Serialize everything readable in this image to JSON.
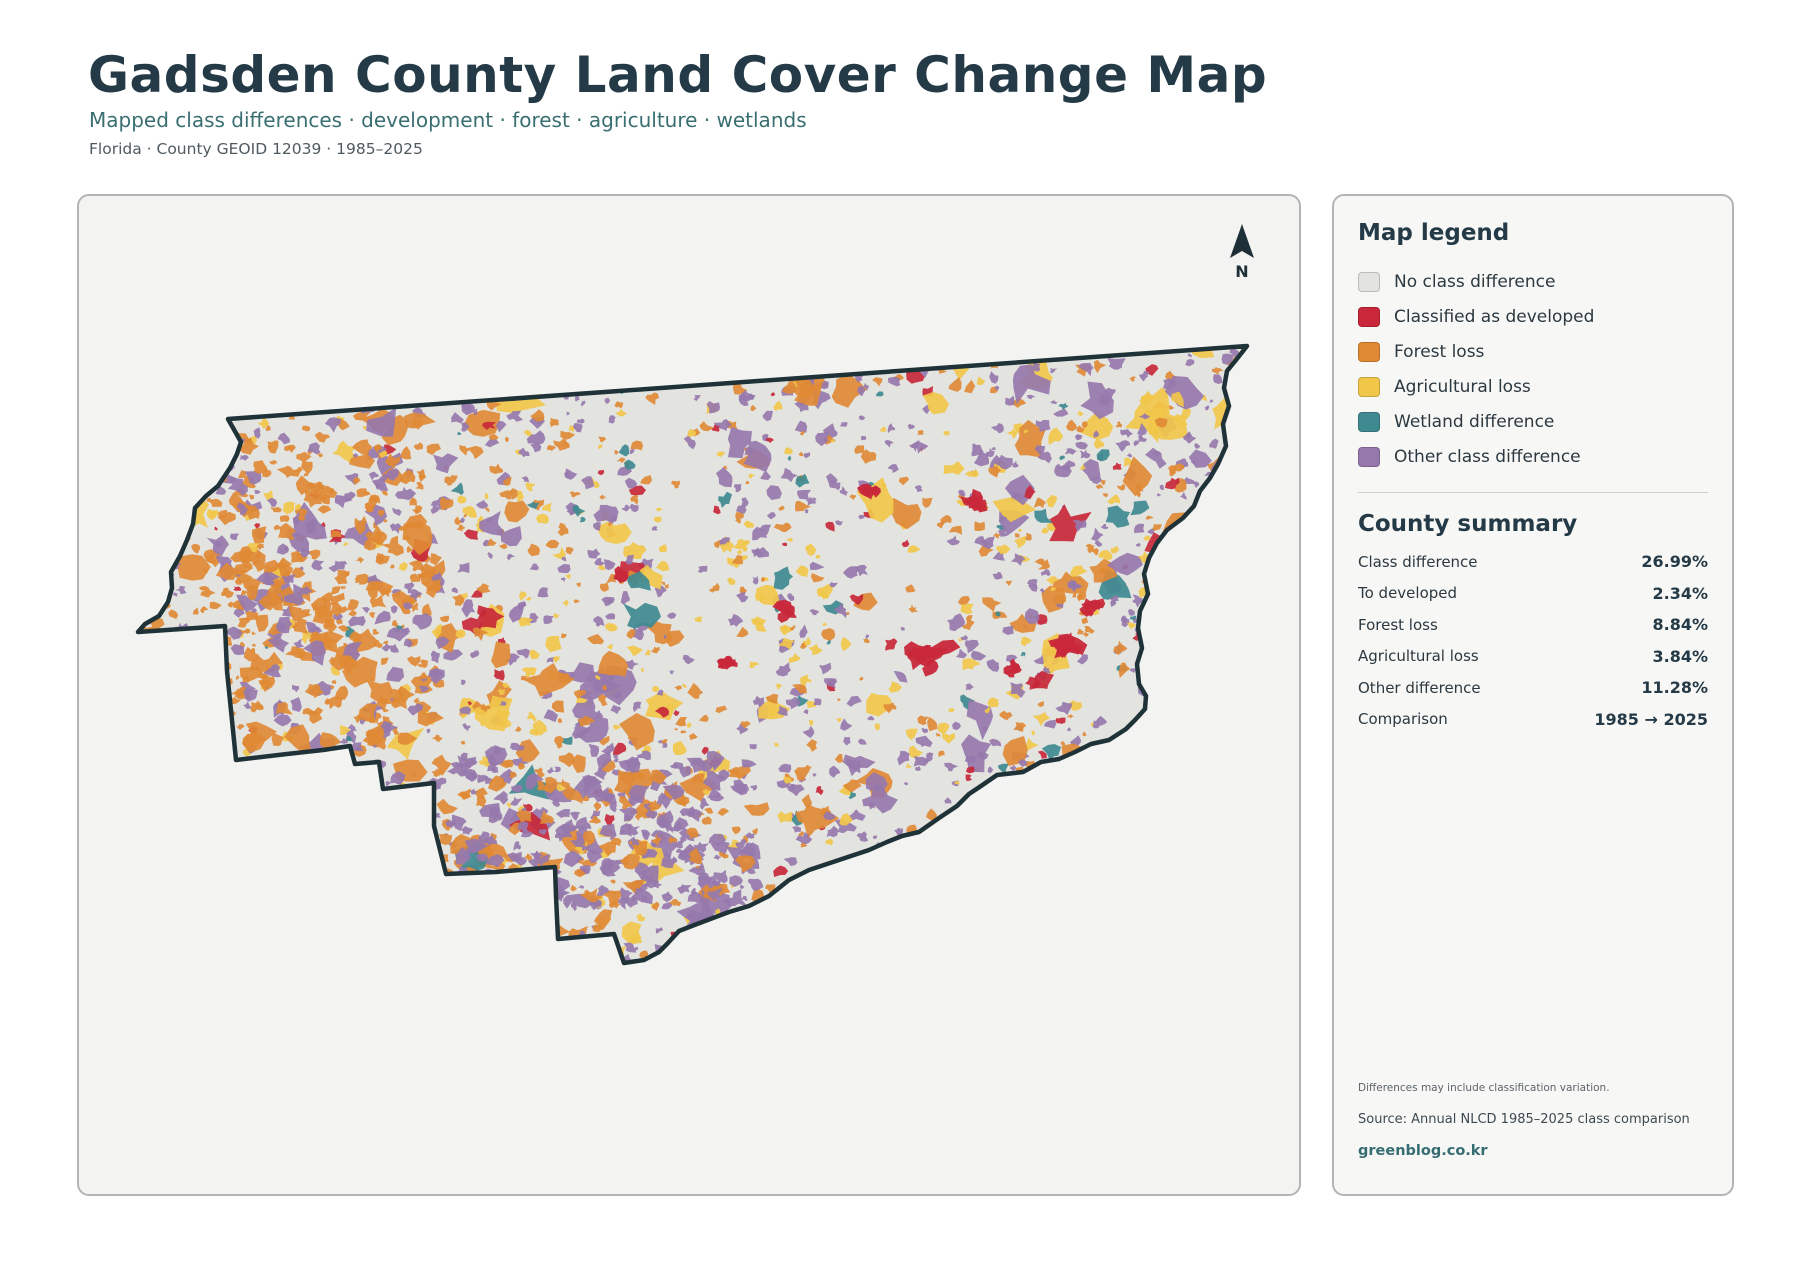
{
  "header": {
    "title": "Gadsden County Land Cover Change Map",
    "subtitle": "Mapped class differences · development · forest · agriculture · wetlands",
    "meta": "Florida · County GEOID 12039 · 1985–2025"
  },
  "map": {
    "north_label": "N",
    "outline_color": "#1f3238",
    "county_fill": "#e3e3e0"
  },
  "legend": {
    "title": "Map legend",
    "items": [
      {
        "label": "No class difference",
        "color": "#e3e3e0"
      },
      {
        "label": "Classified as developed",
        "color": "#c8283a"
      },
      {
        "label": "Forest loss",
        "color": "#e08a35"
      },
      {
        "label": "Agricultural loss",
        "color": "#f1c74a"
      },
      {
        "label": "Wetland difference",
        "color": "#3f8a90"
      },
      {
        "label": "Other class difference",
        "color": "#9678ad"
      }
    ]
  },
  "summary": {
    "title": "County summary",
    "rows": [
      {
        "label": "Class difference",
        "value": "26.99%"
      },
      {
        "label": "To developed",
        "value": "2.34%"
      },
      {
        "label": "Forest loss",
        "value": "8.84%"
      },
      {
        "label": "Agricultural loss",
        "value": "3.84%"
      },
      {
        "label": "Other difference",
        "value": "11.28%"
      },
      {
        "label": "Comparison",
        "value": "1985 → 2025"
      }
    ]
  },
  "footer": {
    "note": "Differences may include classification variation.",
    "source": "Source: Annual NLCD 1985–2025 class comparison",
    "brand": "greenblog.co.kr"
  }
}
